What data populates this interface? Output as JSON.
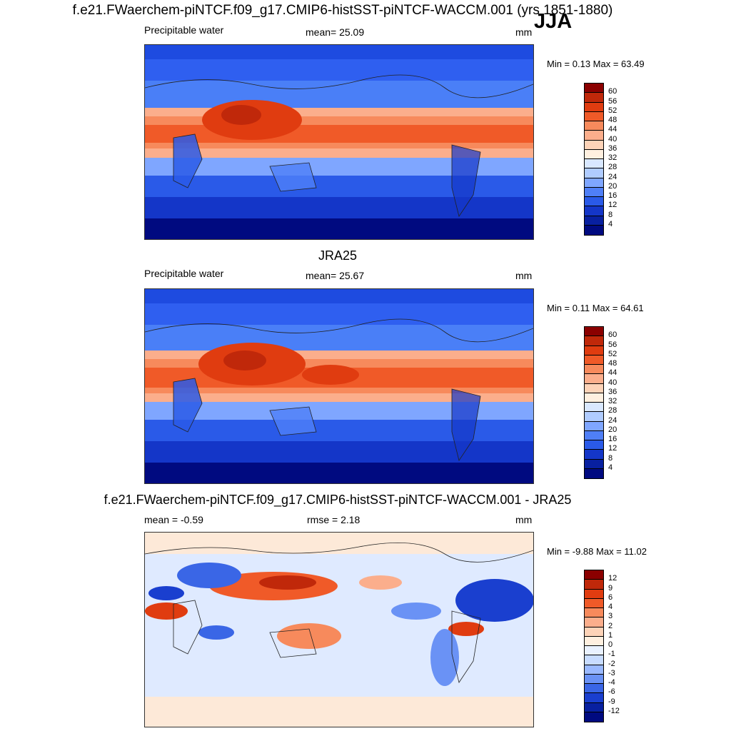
{
  "figure": {
    "title": "f.e21.FWaerchem-piNTCF.f09_g17.CMIP6-histSST-piNTCF-WACCM.001 (yrs 1851-1880)",
    "season": "JJA"
  },
  "panels": [
    {
      "heading": "",
      "left_label": "Precipitable water",
      "center_label": "mean=  25.09",
      "right_label": "mm",
      "minmax": "Min =   0.13 Max =  63.49",
      "colorbar_labels": [
        "60",
        "56",
        "52",
        "48",
        "44",
        "40",
        "36",
        "32",
        "28",
        "24",
        "20",
        "16",
        "12",
        "8",
        "4"
      ],
      "colorbar_colors": [
        "#8b0000",
        "#c0280a",
        "#e03c10",
        "#f05a28",
        "#f78a5c",
        "#fbae8c",
        "#fdd3b8",
        "#fff0e0",
        "#d9e8ff",
        "#b0ccff",
        "#7fa6ff",
        "#4f7ff7",
        "#2a5ae8",
        "#1436c8",
        "#0820a0",
        "#000a80"
      ]
    },
    {
      "heading": "JRA25",
      "left_label": "Precipitable water",
      "center_label": "mean=  25.67",
      "right_label": "mm",
      "minmax": "Min =   0.11 Max =  64.61",
      "colorbar_labels": [
        "60",
        "56",
        "52",
        "48",
        "44",
        "40",
        "36",
        "32",
        "28",
        "24",
        "20",
        "16",
        "12",
        "8",
        "4"
      ],
      "colorbar_colors": [
        "#8b0000",
        "#c0280a",
        "#e03c10",
        "#f05a28",
        "#f78a5c",
        "#fbae8c",
        "#fdd3b8",
        "#fff0e0",
        "#d9e8ff",
        "#b0ccff",
        "#7fa6ff",
        "#4f7ff7",
        "#2a5ae8",
        "#1436c8",
        "#0820a0",
        "#000a80"
      ]
    },
    {
      "heading": "f.e21.FWaerchem-piNTCF.f09_g17.CMIP6-histSST-piNTCF-WACCM.001 - JRA25",
      "left_label": "mean =  -0.59",
      "center_label": "rmse =   2.18",
      "right_label": "mm",
      "minmax": "Min =  -9.88 Max =  11.02",
      "colorbar_labels": [
        "12",
        "9",
        "6",
        "4",
        "3",
        "2",
        "1",
        "0",
        "-1",
        "-2",
        "-3",
        "-4",
        "-6",
        "-9",
        "-12"
      ],
      "colorbar_colors": [
        "#8b0000",
        "#c0280a",
        "#e03c10",
        "#f05a28",
        "#f78a5c",
        "#fbae8c",
        "#fdd3b8",
        "#fff0e0",
        "#eaf2ff",
        "#c8dcff",
        "#9ab9ff",
        "#6a92f5",
        "#3a66e6",
        "#1a3fcf",
        "#0820a0",
        "#000a80"
      ]
    }
  ]
}
